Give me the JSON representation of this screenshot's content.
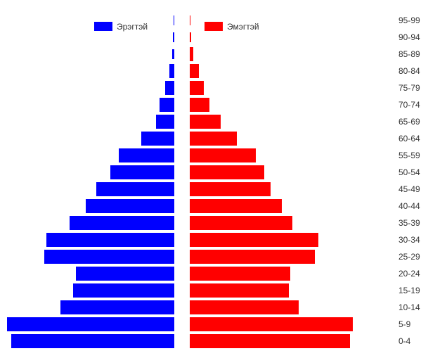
{
  "chart_data": {
    "type": "bar",
    "orientation": "population-pyramid",
    "categories": [
      "0-4",
      "5-9",
      "10-14",
      "15-19",
      "20-24",
      "25-29",
      "30-34",
      "35-39",
      "40-44",
      "45-49",
      "50-54",
      "55-59",
      "60-64",
      "65-69",
      "70-74",
      "75-79",
      "80-84",
      "85-89",
      "90-94",
      "95-99"
    ],
    "series": [
      {
        "name": "Эрэгтэй",
        "color": "#0000ff",
        "values": [
          232,
          238,
          162,
          144,
          140,
          185,
          182,
          149,
          126,
          111,
          91,
          79,
          47,
          26,
          21,
          13,
          7,
          3,
          2,
          0
        ]
      },
      {
        "name": "Эмэгтэй",
        "color": "#ff0000",
        "values": [
          228,
          232,
          155,
          141,
          143,
          178,
          183,
          146,
          131,
          115,
          106,
          94,
          67,
          44,
          28,
          20,
          13,
          5,
          2,
          1
        ]
      }
    ],
    "legend_position": "top",
    "grid": false,
    "xlabel": "",
    "ylabel": ""
  }
}
